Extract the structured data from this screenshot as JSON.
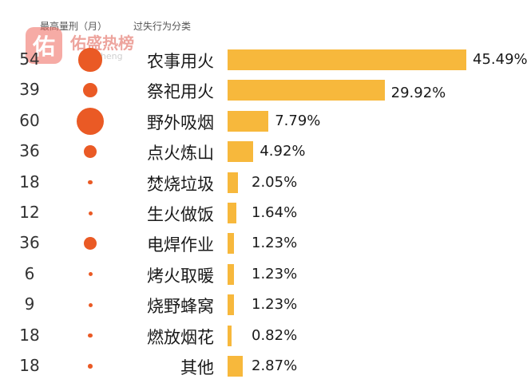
{
  "header": {
    "months_label": "最高量刑（月）",
    "behavior_label": "过失行为分类"
  },
  "watermark": {
    "badge": "佑",
    "brand": "佑盛热榜",
    "url": "yousheng"
  },
  "colors": {
    "bar": "#f7b83c",
    "dot": "#ea5a25"
  },
  "chart_data": {
    "type": "bar",
    "orientation": "horizontal",
    "xlabel": "",
    "ylabel": "过失行为分类",
    "title": "",
    "categories": [
      "农事用火",
      "祭祀用火",
      "野外吸烟",
      "点火炼山",
      "焚烧垃圾",
      "生火做饭",
      "电焊作业",
      "烤火取暖",
      "烧野蜂窝",
      "燃放烟花",
      "其他"
    ],
    "values": [
      45.49,
      29.92,
      7.79,
      4.92,
      2.05,
      1.64,
      1.23,
      1.23,
      1.23,
      0.82,
      2.87
    ],
    "value_labels": [
      "45.49%",
      "29.92%",
      "7.79%",
      "4.92%",
      "2.05%",
      "1.64%",
      "1.23%",
      "1.23%",
      "1.23%",
      "0.82%",
      "2.87%"
    ],
    "max_sentence_months": [
      54,
      39,
      60,
      36,
      18,
      12,
      36,
      6,
      9,
      18,
      18
    ],
    "xlim": [
      0,
      45.49
    ],
    "legend": "none",
    "grid": false
  }
}
